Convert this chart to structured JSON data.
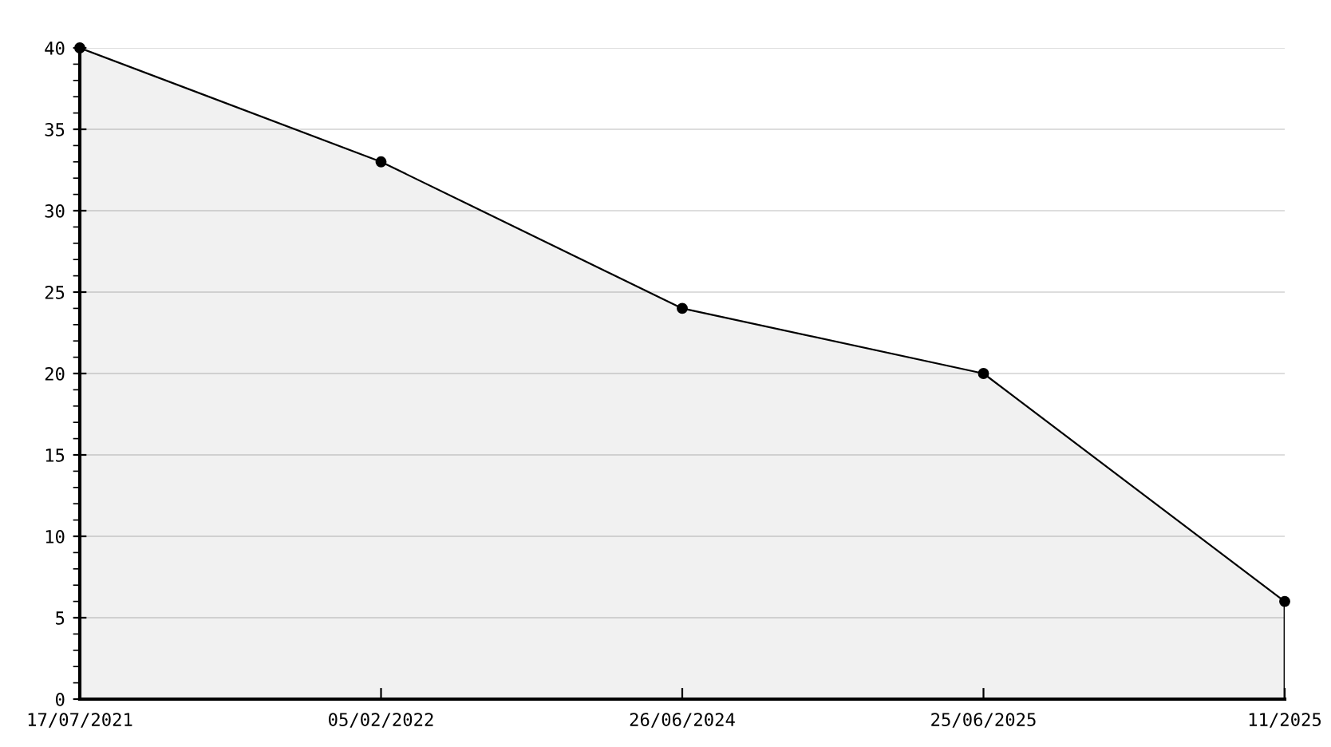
{
  "chart_data": {
    "type": "area",
    "categories": [
      "17/07/2021",
      "05/02/2022",
      "26/06/2024",
      "25/06/2025",
      "11/2025"
    ],
    "series": [
      {
        "color": "#000000",
        "values": [
          40,
          33,
          24,
          20,
          6
        ]
      }
    ],
    "ylim": [
      0,
      40
    ],
    "yticks": [
      0,
      5,
      10,
      15,
      20,
      25,
      30,
      35,
      40
    ],
    "grid": "y",
    "marker": "circle",
    "line_style": "solid",
    "legend": false
  }
}
